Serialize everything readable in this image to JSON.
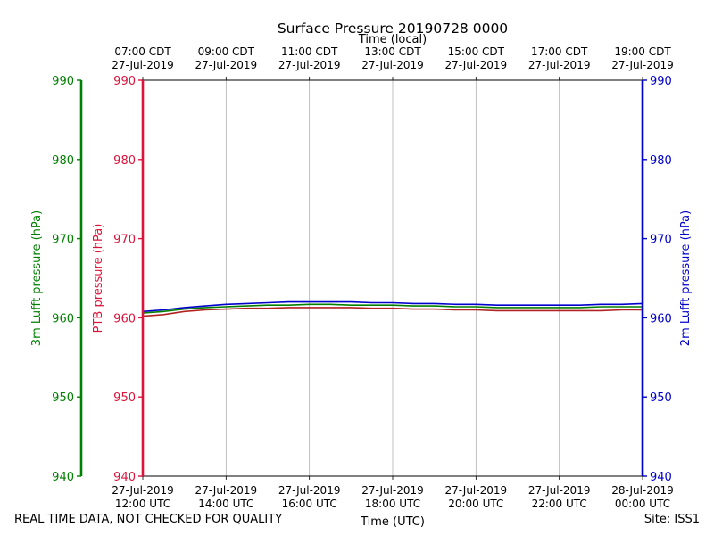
{
  "chart_data": {
    "type": "line",
    "title": "Surface Pressure 20190728 0000",
    "xlabel": "Time (UTC)",
    "xlabel_top": "Time (local)",
    "x_ticks_bottom": [
      {
        "line1": "27-Jul-2019",
        "line2": "12:00 UTC"
      },
      {
        "line1": "27-Jul-2019",
        "line2": "14:00 UTC"
      },
      {
        "line1": "27-Jul-2019",
        "line2": "16:00 UTC"
      },
      {
        "line1": "27-Jul-2019",
        "line2": "18:00 UTC"
      },
      {
        "line1": "27-Jul-2019",
        "line2": "20:00 UTC"
      },
      {
        "line1": "27-Jul-2019",
        "line2": "22:00 UTC"
      },
      {
        "line1": "28-Jul-2019",
        "line2": "00:00 UTC"
      }
    ],
    "x_ticks_top": [
      {
        "line1": "07:00 CDT",
        "line2": "27-Jul-2019"
      },
      {
        "line1": "09:00 CDT",
        "line2": "27-Jul-2019"
      },
      {
        "line1": "11:00 CDT",
        "line2": "27-Jul-2019"
      },
      {
        "line1": "13:00 CDT",
        "line2": "27-Jul-2019"
      },
      {
        "line1": "15:00 CDT",
        "line2": "27-Jul-2019"
      },
      {
        "line1": "17:00 CDT",
        "line2": "27-Jul-2019"
      },
      {
        "line1": "19:00 CDT",
        "line2": "27-Jul-2019"
      }
    ],
    "xlim_utc_hours": [
      12,
      24
    ],
    "x_grid": true,
    "y_axes": [
      {
        "id": "lufft3m",
        "label": "3m Lufft pressure (hPa)",
        "color": "#008000",
        "ylim": [
          940,
          990
        ],
        "ticks": [
          940,
          950,
          960,
          970,
          980,
          990
        ]
      },
      {
        "id": "ptb",
        "label": "PTB pressure (hPa)",
        "color": "#dc143c",
        "ylim": [
          940,
          990
        ],
        "ticks": [
          940,
          950,
          960,
          970,
          980,
          990
        ]
      },
      {
        "id": "lufft2m",
        "label": "2m Lufft pressure (hPa)",
        "color": "#0000cd",
        "ylim": [
          940,
          990
        ],
        "ticks": [
          940,
          950,
          960,
          970,
          980,
          990
        ]
      }
    ],
    "series": [
      {
        "axis": "ptb",
        "color": "#b22222",
        "x": [
          12,
          12.5,
          13,
          13.5,
          14,
          14.5,
          15,
          15.5,
          16,
          16.5,
          17,
          17.5,
          18,
          18.5,
          19,
          19.5,
          20,
          20.5,
          21,
          21.5,
          22,
          22.5,
          23,
          23.5,
          24
        ],
        "y": [
          960.2,
          960.4,
          960.8,
          961.0,
          961.1,
          961.2,
          961.2,
          961.3,
          961.3,
          961.3,
          961.3,
          961.2,
          961.2,
          961.1,
          961.1,
          961.0,
          961.0,
          960.9,
          960.9,
          960.9,
          960.9,
          960.9,
          960.9,
          961.0,
          961.0
        ]
      },
      {
        "axis": "lufft3m",
        "color": "#008000",
        "x": [
          12,
          12.5,
          13,
          13.5,
          14,
          14.5,
          15,
          15.5,
          16,
          16.5,
          17,
          17.5,
          18,
          18.5,
          19,
          19.5,
          20,
          20.5,
          21,
          21.5,
          22,
          22.5,
          23,
          23.5,
          24
        ],
        "y": [
          960.6,
          960.8,
          961.1,
          961.3,
          961.4,
          961.5,
          961.6,
          961.6,
          961.7,
          961.7,
          961.6,
          961.6,
          961.6,
          961.5,
          961.5,
          961.4,
          961.4,
          961.3,
          961.3,
          961.3,
          961.3,
          961.3,
          961.4,
          961.4,
          961.4
        ]
      },
      {
        "axis": "lufft2m",
        "color": "#0000cd",
        "x": [
          12,
          12.5,
          13,
          13.5,
          14,
          14.5,
          15,
          15.5,
          16,
          16.5,
          17,
          17.5,
          18,
          18.5,
          19,
          19.5,
          20,
          20.5,
          21,
          21.5,
          22,
          22.5,
          23,
          23.5,
          24
        ],
        "y": [
          960.8,
          961.0,
          961.3,
          961.5,
          961.7,
          961.8,
          961.9,
          962.0,
          962.0,
          962.0,
          962.0,
          961.9,
          961.9,
          961.8,
          961.8,
          961.7,
          961.7,
          961.6,
          961.6,
          961.6,
          961.6,
          961.6,
          961.7,
          961.7,
          961.8
        ]
      }
    ]
  },
  "footer": {
    "left": "REAL TIME DATA, NOT CHECKED FOR QUALITY",
    "right": "Site: ISS1"
  }
}
